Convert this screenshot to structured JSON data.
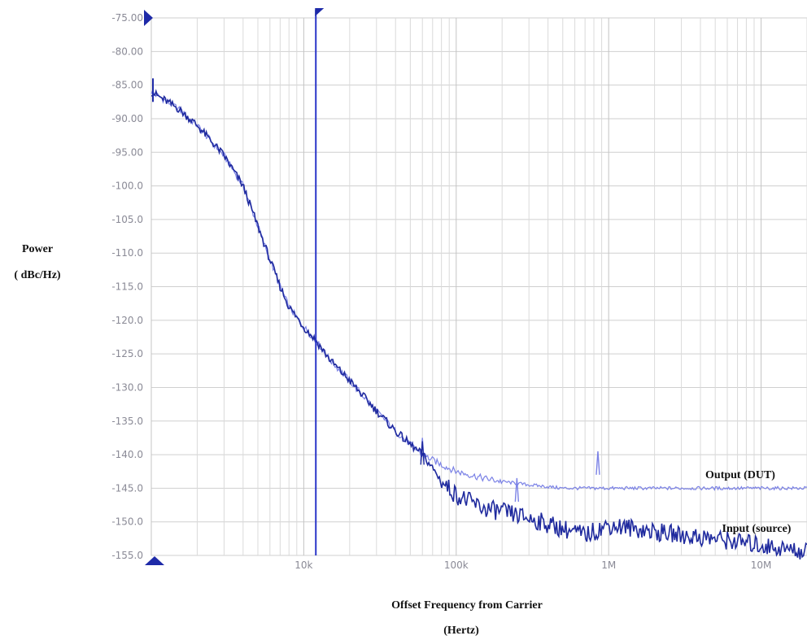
{
  "chart_data": {
    "type": "line",
    "ylabel": "Power",
    "ylabel_unit": "( dBc/Hz)",
    "xlabel": "Offset Frequency from Carrier",
    "xlabel_unit": "(Hertz)",
    "x_scale": "log",
    "xlim": [
      1000,
      20000000
    ],
    "ylim": [
      -155,
      -75
    ],
    "y_ticks": [
      "-75.00",
      "-80.00",
      "-85.00",
      "-90.00",
      "-95.00",
      "-100.0",
      "-105.0",
      "-110.0",
      "-115.0",
      "-120.0",
      "-125.0",
      "-130.0",
      "-135.0",
      "-140.0",
      "-145.0",
      "-150.0",
      "-155.0"
    ],
    "x_ticks": [
      {
        "value": 10000,
        "label": "10k"
      },
      {
        "value": 100000,
        "label": "100k"
      },
      {
        "value": 1000000,
        "label": "1M"
      },
      {
        "value": 10000000,
        "label": "10M"
      }
    ],
    "grid": true,
    "cursor_x": 12000,
    "series": [
      {
        "name": "Output (DUT)",
        "color": "#7b82e6",
        "points": [
          [
            1000,
            -86
          ],
          [
            1500,
            -88.5
          ],
          [
            2000,
            -91
          ],
          [
            3000,
            -95.5
          ],
          [
            4000,
            -100
          ],
          [
            5000,
            -106
          ],
          [
            6000,
            -111
          ],
          [
            7000,
            -115
          ],
          [
            8000,
            -118
          ],
          [
            10000,
            -121
          ],
          [
            12000,
            -123
          ],
          [
            15000,
            -126
          ],
          [
            20000,
            -129
          ],
          [
            30000,
            -133.5
          ],
          [
            40000,
            -136.5
          ],
          [
            50000,
            -138.5
          ],
          [
            60000,
            -140
          ],
          [
            80000,
            -141.5
          ],
          [
            100000,
            -142.5
          ],
          [
            150000,
            -143.5
          ],
          [
            200000,
            -144
          ],
          [
            300000,
            -144.5
          ],
          [
            500000,
            -145
          ],
          [
            1000000,
            -145
          ],
          [
            3000000,
            -145
          ],
          [
            10000000,
            -145
          ],
          [
            20000000,
            -145
          ]
        ],
        "spurs": [
          [
            60000,
            -137.5
          ],
          [
            250000,
            -143.5
          ],
          [
            850000,
            -139.5
          ]
        ]
      },
      {
        "name": "Input (source)",
        "color": "#1f2a9e",
        "points": [
          [
            1000,
            -86
          ],
          [
            1500,
            -88.5
          ],
          [
            2000,
            -91
          ],
          [
            3000,
            -95.5
          ],
          [
            4000,
            -100
          ],
          [
            5000,
            -106
          ],
          [
            6000,
            -111
          ],
          [
            7000,
            -115
          ],
          [
            8000,
            -118
          ],
          [
            10000,
            -121
          ],
          [
            12000,
            -123
          ],
          [
            15000,
            -126
          ],
          [
            20000,
            -129
          ],
          [
            30000,
            -133.5
          ],
          [
            40000,
            -136.5
          ],
          [
            50000,
            -138.5
          ],
          [
            60000,
            -140
          ],
          [
            70000,
            -142
          ],
          [
            80000,
            -144
          ],
          [
            100000,
            -146
          ],
          [
            150000,
            -148
          ],
          [
            200000,
            -148.5
          ],
          [
            300000,
            -149.5
          ],
          [
            500000,
            -151
          ],
          [
            700000,
            -152
          ],
          [
            1000000,
            -150.5
          ],
          [
            1500000,
            -151
          ],
          [
            2000000,
            -151.5
          ],
          [
            3000000,
            -152
          ],
          [
            5000000,
            -152.5
          ],
          [
            10000000,
            -153.5
          ],
          [
            20000000,
            -154.5
          ]
        ],
        "spurs": [
          [
            60000,
            -138
          ]
        ]
      }
    ]
  }
}
